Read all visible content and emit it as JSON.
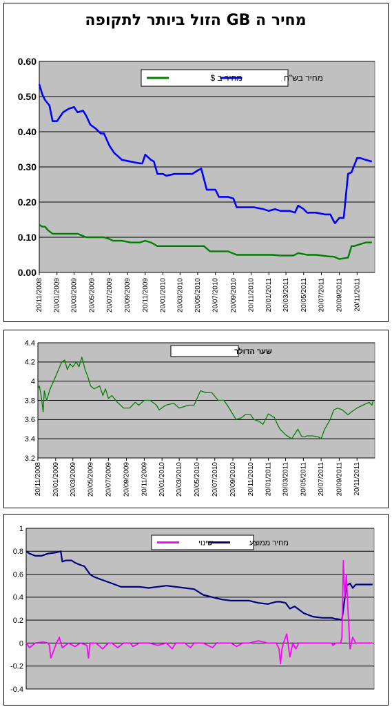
{
  "charts": [
    {
      "chart_data": {
        "type": "line",
        "title": "מחיר ה GB הזול ביותר לתקופה",
        "xlabel": "",
        "ylabel": "",
        "x_ticks": [
          "20/11/2008",
          "20/01/2009",
          "20/03/2009",
          "20/05/2009",
          "20/07/2009",
          "20/09/2009",
          "20/11/2009",
          "20/01/2010",
          "20/03/2010",
          "20/05/2010",
          "20/07/2010",
          "20/09/2010",
          "20/11/2010",
          "20/01/2011",
          "20/03/2011",
          "20/05/2011",
          "20/07/2011",
          "20/09/2011",
          "20/11/2011"
        ],
        "y_ticks": [
          "0.00",
          "0.10",
          "0.20",
          "0.30",
          "0.40",
          "0.50",
          "0.60"
        ],
        "ylim": [
          0,
          0.6
        ],
        "x_range": [
          "20/11/2008",
          "20/01/2012"
        ],
        "grid": true,
        "legend": "top-center",
        "series": [
          {
            "name": "מחיר בש\"ח",
            "color": "#0000ff",
            "x": [
              "20/11/2008",
              "01/12/2008",
              "10/12/2008",
              "25/12/2008",
              "05/01/2009",
              "20/01/2009",
              "10/02/2009",
              "01/03/2009",
              "20/03/2009",
              "01/04/2009",
              "20/04/2009",
              "01/05/2009",
              "15/05/2009",
              "01/06/2009",
              "20/06/2009",
              "01/07/2009",
              "20/07/2009",
              "05/08/2009",
              "01/09/2009",
              "01/10/2009",
              "01/11/2009",
              "10/11/2009",
              "20/11/2009",
              "10/12/2009",
              "20/12/2009",
              "01/01/2010",
              "20/01/2010",
              "01/02/2010",
              "01/03/2010",
              "01/04/2010",
              "01/05/2010",
              "20/05/2010",
              "01/06/2010",
              "20/06/2010",
              "10/07/2010",
              "20/07/2010",
              "01/08/2010",
              "01/09/2010",
              "20/09/2010",
              "01/10/2010",
              "01/11/2010",
              "01/12/2010",
              "01/01/2011",
              "20/01/2011",
              "10/02/2011",
              "01/03/2011",
              "01/04/2011",
              "20/04/2011",
              "01/05/2011",
              "20/05/2011",
              "01/06/2011",
              "01/07/2011",
              "01/08/2011",
              "20/08/2011",
              "01/09/2011",
              "05/09/2011",
              "20/09/2011",
              "25/09/2011",
              "05/10/2011",
              "20/10/2011",
              "01/11/2011",
              "20/11/2011",
              "01/12/2011",
              "20/12/2011",
              "10/01/2012"
            ],
            "values": [
              0.535,
              0.505,
              0.49,
              0.475,
              0.43,
              0.43,
              0.455,
              0.465,
              0.47,
              0.455,
              0.46,
              0.445,
              0.42,
              0.41,
              0.395,
              0.395,
              0.36,
              0.34,
              0.32,
              0.315,
              0.31,
              0.31,
              0.335,
              0.32,
              0.315,
              0.28,
              0.28,
              0.275,
              0.28,
              0.28,
              0.28,
              0.29,
              0.295,
              0.235,
              0.235,
              0.235,
              0.215,
              0.215,
              0.21,
              0.185,
              0.185,
              0.185,
              0.18,
              0.175,
              0.18,
              0.175,
              0.175,
              0.17,
              0.19,
              0.18,
              0.17,
              0.17,
              0.165,
              0.165,
              0.145,
              0.14,
              0.155,
              0.155,
              0.155,
              0.28,
              0.285,
              0.325,
              0.325,
              0.32,
              0.315
            ]
          },
          {
            "name": "מחיר ב $",
            "color": "#008000",
            "x": [
              "20/11/2008",
              "01/12/2008",
              "10/12/2008",
              "20/12/2008",
              "05/01/2009",
              "01/02/2009",
              "01/03/2009",
              "01/04/2009",
              "01/05/2009",
              "01/06/2009",
              "01/07/2009",
              "20/07/2009",
              "01/08/2009",
              "01/09/2009",
              "01/10/2009",
              "01/11/2009",
              "20/11/2009",
              "10/12/2009",
              "01/01/2010",
              "01/02/2010",
              "01/04/2010",
              "01/06/2010",
              "10/06/2010",
              "01/07/2010",
              "01/08/2010",
              "01/09/2010",
              "01/10/2010",
              "01/12/2010",
              "01/02/2011",
              "01/03/2011",
              "01/04/2011",
              "15/04/2011",
              "01/05/2011",
              "01/06/2011",
              "01/07/2011",
              "20/08/2011",
              "01/09/2011",
              "20/09/2011",
              "20/10/2011",
              "01/11/2011",
              "10/11/2011",
              "20/12/2011",
              "10/01/2012"
            ],
            "values": [
              0.135,
              0.13,
              0.13,
              0.12,
              0.11,
              0.11,
              0.11,
              0.11,
              0.1,
              0.1,
              0.1,
              0.095,
              0.09,
              0.09,
              0.085,
              0.085,
              0.09,
              0.085,
              0.075,
              0.075,
              0.075,
              0.075,
              0.075,
              0.06,
              0.06,
              0.06,
              0.05,
              0.05,
              0.05,
              0.048,
              0.048,
              0.048,
              0.055,
              0.05,
              0.05,
              0.045,
              0.045,
              0.038,
              0.042,
              0.075,
              0.075,
              0.085,
              0.085
            ]
          }
        ]
      }
    },
    {
      "chart_data": {
        "type": "line",
        "title": "",
        "xlabel": "",
        "ylabel": "",
        "x_ticks": [
          "20/11/2008",
          "20/01/2009",
          "20/03/2009",
          "20/05/2009",
          "20/07/2009",
          "20/09/2009",
          "20/11/2009",
          "20/01/2010",
          "20/03/2010",
          "20/05/2010",
          "20/07/2010",
          "20/09/2010",
          "20/11/2010",
          "20/01/2011",
          "20/03/2011",
          "20/05/2011",
          "20/07/2011",
          "20/09/2011",
          "20/11/2011"
        ],
        "y_ticks": [
          "3.2",
          "3.4",
          "3.6",
          "3.8",
          "4",
          "4.2",
          "4.4"
        ],
        "ylim": [
          3.2,
          4.4
        ],
        "x_range": [
          "20/11/2008",
          "20/01/2012"
        ],
        "grid": true,
        "legend": "top-center",
        "series": [
          {
            "name": "שער הדולר",
            "color": "#008000",
            "x": [
              "20/11/2008",
              "25/11/2008",
              "01/12/2008",
              "08/12/2008",
              "12/12/2008",
              "20/12/2008",
              "01/01/2009",
              "20/01/2009",
              "10/02/2009",
              "20/02/2009",
              "01/03/2009",
              "10/03/2009",
              "20/03/2009",
              "01/04/2009",
              "10/04/2009",
              "20/04/2009",
              "01/05/2009",
              "10/05/2009",
              "20/05/2009",
              "01/06/2009",
              "20/06/2009",
              "01/07/2009",
              "10/07/2009",
              "20/07/2009",
              "01/08/2009",
              "20/08/2009",
              "10/09/2009",
              "01/10/2009",
              "20/10/2009",
              "01/11/2009",
              "20/11/2009",
              "10/12/2009",
              "01/01/2010",
              "10/01/2010",
              "01/02/2010",
              "01/03/2010",
              "20/03/2010",
              "01/04/2010",
              "20/04/2010",
              "10/05/2010",
              "01/06/2010",
              "20/06/2010",
              "10/07/2010",
              "01/08/2010",
              "20/08/2010",
              "01/09/2010",
              "01/10/2010",
              "20/10/2010",
              "01/11/2010",
              "20/11/2010",
              "01/12/2010",
              "20/12/2010",
              "01/01/2011",
              "20/01/2011",
              "10/02/2011",
              "20/02/2011",
              "01/03/2011",
              "20/03/2011",
              "10/04/2011",
              "01/05/2011",
              "15/05/2011",
              "25/05/2011",
              "01/06/2011",
              "20/06/2011",
              "10/07/2011",
              "20/07/2011",
              "01/08/2011",
              "20/08/2011",
              "01/09/2011",
              "15/09/2011",
              "01/10/2011",
              "20/10/2011",
              "01/11/2011",
              "20/11/2011",
              "10/12/2011",
              "01/01/2012",
              "10/01/2012",
              "15/01/2012"
            ],
            "values": [
              3.92,
              3.95,
              3.85,
              3.68,
              3.9,
              3.8,
              3.92,
              4.05,
              4.2,
              4.22,
              4.12,
              4.18,
              4.15,
              4.2,
              4.15,
              4.25,
              4.12,
              4.05,
              3.95,
              3.92,
              3.95,
              3.85,
              3.92,
              3.82,
              3.85,
              3.78,
              3.72,
              3.72,
              3.78,
              3.75,
              3.8,
              3.8,
              3.75,
              3.7,
              3.75,
              3.77,
              3.72,
              3.73,
              3.75,
              3.75,
              3.9,
              3.88,
              3.88,
              3.8,
              3.8,
              3.75,
              3.6,
              3.62,
              3.65,
              3.65,
              3.6,
              3.58,
              3.55,
              3.66,
              3.62,
              3.55,
              3.5,
              3.44,
              3.4,
              3.5,
              3.42,
              3.42,
              3.43,
              3.43,
              3.42,
              3.4,
              3.5,
              3.6,
              3.7,
              3.72,
              3.7,
              3.65,
              3.68,
              3.72,
              3.75,
              3.78,
              3.75,
              3.8
            ]
          }
        ]
      }
    },
    {
      "chart_data": {
        "type": "line",
        "title": "",
        "xlabel": "",
        "ylabel": "",
        "x_ticks": [],
        "y_ticks": [
          "-0.4",
          "-0.2",
          "0",
          "0.2",
          "0.4",
          "0.6",
          "0.8",
          "1"
        ],
        "ylim": [
          -0.4,
          1
        ],
        "x_range": [
          "20/11/2008",
          "20/01/2012"
        ],
        "grid": true,
        "legend": "top-center",
        "series": [
          {
            "name": "מחיר ממוצע",
            "color": "#000080",
            "x": [
              "20/11/2008",
              "01/12/2008",
              "20/12/2008",
              "10/01/2009",
              "01/02/2009",
              "01/03/2009",
              "15/03/2009",
              "20/03/2009",
              "01/04/2009",
              "20/04/2009",
              "01/05/2009",
              "20/05/2009",
              "01/06/2009",
              "20/06/2009",
              "01/07/2009",
              "20/07/2009",
              "01/09/2009",
              "01/10/2009",
              "01/12/2009",
              "01/01/2010",
              "01/03/2010",
              "01/05/2010",
              "01/06/2010",
              "01/07/2010",
              "01/08/2010",
              "01/09/2010",
              "01/10/2010",
              "01/12/2010",
              "01/01/2011",
              "01/02/2011",
              "01/03/2011",
              "15/03/2011",
              "01/04/2011",
              "15/04/2011",
              "01/05/2011",
              "01/06/2011",
              "01/07/2011",
              "01/08/2011",
              "01/09/2011",
              "15/09/2011",
              "20/09/2011",
              "05/10/2011",
              "20/10/2011",
              "01/11/2011",
              "10/11/2011",
              "20/11/2011",
              "20/12/2011",
              "15/01/2012"
            ],
            "values": [
              0.8,
              0.78,
              0.76,
              0.76,
              0.78,
              0.79,
              0.8,
              0.71,
              0.72,
              0.72,
              0.7,
              0.68,
              0.67,
              0.6,
              0.58,
              0.56,
              0.52,
              0.49,
              0.49,
              0.48,
              0.5,
              0.48,
              0.47,
              0.42,
              0.4,
              0.38,
              0.37,
              0.37,
              0.35,
              0.34,
              0.36,
              0.36,
              0.35,
              0.3,
              0.32,
              0.26,
              0.23,
              0.22,
              0.22,
              0.21,
              0.21,
              0.2,
              0.5,
              0.52,
              0.48,
              0.51,
              0.51,
              0.51
            ]
          },
          {
            "name": "שינוי",
            "color": "#ff00ff",
            "x": [
              "20/11/2008",
              "01/12/2008",
              "20/12/2008",
              "15/01/2009",
              "01/02/2009",
              "05/02/2009",
              "10/02/2009",
              "01/03/2009",
              "10/03/2009",
              "20/03/2009",
              "10/04/2009",
              "01/05/2009",
              "20/05/2009",
              "10/06/2009",
              "15/06/2009",
              "20/06/2009",
              "10/07/2009",
              "01/08/2009",
              "20/08/2009",
              "01/09/2009",
              "20/09/2009",
              "10/10/2009",
              "01/11/2009",
              "10/11/2009",
              "01/12/2009",
              "01/01/2010",
              "01/02/2010",
              "01/03/2010",
              "20/03/2010",
              "01/04/2010",
              "01/05/2010",
              "20/05/2010",
              "01/06/2010",
              "01/07/2010",
              "01/08/2010",
              "15/08/2010",
              "01/09/2010",
              "01/10/2010",
              "20/10/2010",
              "10/11/2010",
              "01/12/2010",
              "01/01/2011",
              "01/02/2011",
              "01/03/2011",
              "10/03/2011",
              "15/03/2011",
              "20/03/2011",
              "25/03/2011",
              "05/04/2011",
              "15/04/2011",
              "25/04/2011",
              "05/05/2011",
              "15/05/2011",
              "01/06/2011",
              "01/07/2011",
              "01/08/2011",
              "01/09/2011",
              "05/09/2011",
              "15/09/2011",
              "25/09/2011",
              "01/10/2011",
              "05/10/2011",
              "10/10/2011",
              "15/10/2011",
              "20/10/2011",
              "25/10/2011",
              "01/11/2011",
              "10/11/2011",
              "20/11/2011",
              "20/12/2011",
              "15/01/2012"
            ],
            "values": [
              0,
              -0.04,
              0,
              0.01,
              0,
              -0.02,
              -0.13,
              0,
              0.05,
              -0.04,
              0,
              -0.03,
              0,
              -0.02,
              -0.13,
              0,
              0,
              -0.05,
              0,
              0,
              -0.04,
              0,
              0,
              -0.03,
              0,
              0,
              -0.02,
              0,
              -0.05,
              0,
              0,
              -0.04,
              0,
              0,
              -0.04,
              0,
              0,
              0,
              -0.03,
              0,
              0,
              0.02,
              0,
              0,
              -0.05,
              -0.18,
              -0.05,
              0,
              0.08,
              -0.12,
              0,
              -0.05,
              0,
              0,
              0,
              0,
              0,
              -0.02,
              0,
              0,
              0,
              0.05,
              0.72,
              0.4,
              0.6,
              0.3,
              -0.05,
              0.05,
              0,
              0,
              0
            ]
          }
        ]
      }
    }
  ]
}
